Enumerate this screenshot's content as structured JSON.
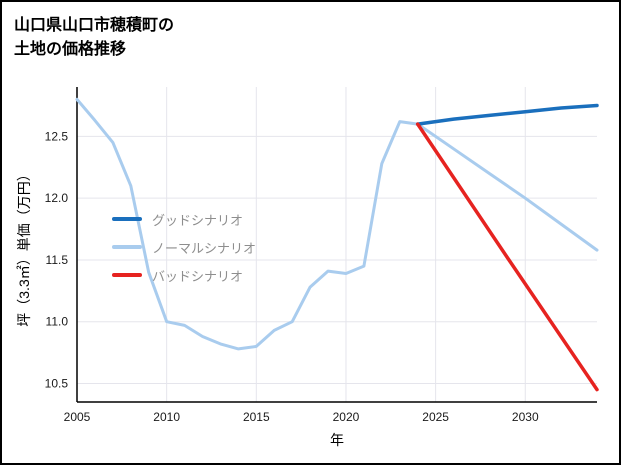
{
  "title": {
    "line1": "山口県山口市穂積町の",
    "line2": "土地の価格推移"
  },
  "chart_data": {
    "type": "line",
    "title": "山口県山口市穂積町の土地の価格推移",
    "xlabel": "年",
    "ylabel": "坪（3.3㎡）単価（万円）",
    "xlim": [
      2005,
      2034
    ],
    "ylim": [
      10.35,
      12.9
    ],
    "x_ticks": [
      2005,
      2010,
      2015,
      2020,
      2025,
      2030
    ],
    "y_ticks": [
      10.5,
      11.0,
      11.5,
      12.0,
      12.5
    ],
    "grid": true,
    "legend_position": "inside-left-center",
    "legend": [
      {
        "label": "グッドシナリオ",
        "color": "#1a6fbd"
      },
      {
        "label": "ノーマルシナリオ",
        "color": "#a9ccee"
      },
      {
        "label": "バッドシナリオ",
        "color": "#e62320"
      }
    ],
    "series": [
      {
        "name": "history",
        "color": "#a9ccee",
        "width": 3,
        "x": [
          2005,
          2006,
          2007,
          2008,
          2009,
          2010,
          2011,
          2012,
          2013,
          2014,
          2015,
          2016,
          2017,
          2018,
          2019,
          2020,
          2021,
          2022,
          2023,
          2024
        ],
        "y": [
          12.8,
          12.63,
          12.45,
          12.1,
          11.4,
          11.0,
          10.97,
          10.88,
          10.82,
          10.78,
          10.8,
          10.93,
          11.0,
          11.28,
          11.41,
          11.39,
          11.45,
          12.28,
          12.62,
          12.6
        ]
      },
      {
        "name": "normal-scenario",
        "color": "#a9ccee",
        "width": 3,
        "x": [
          2024,
          2026,
          2028,
          2030,
          2032,
          2034
        ],
        "y": [
          12.6,
          12.4,
          12.2,
          12.0,
          11.79,
          11.58
        ]
      },
      {
        "name": "good-scenario",
        "color": "#1a6fbd",
        "width": 3.5,
        "x": [
          2024,
          2026,
          2028,
          2030,
          2032,
          2034
        ],
        "y": [
          12.6,
          12.64,
          12.67,
          12.7,
          12.73,
          12.75
        ]
      },
      {
        "name": "bad-scenario",
        "color": "#e62320",
        "width": 3.5,
        "x": [
          2024,
          2029,
          2034
        ],
        "y": [
          12.6,
          11.52,
          10.45
        ]
      }
    ]
  }
}
